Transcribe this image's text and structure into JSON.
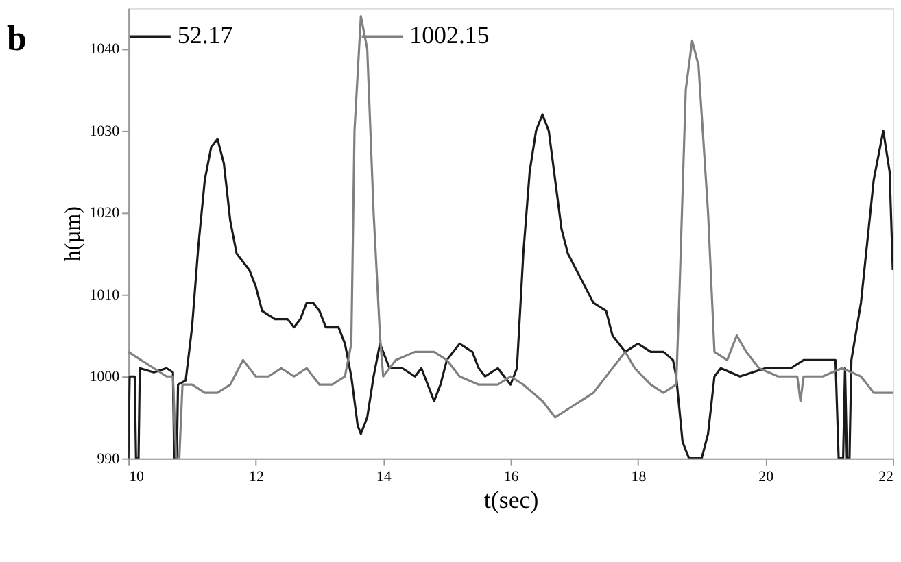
{
  "chart_data": {
    "type": "line",
    "title": "b",
    "xlabel": "t(sec)",
    "ylabel": "h(µm)",
    "xlim": [
      10,
      22
    ],
    "xticks": [
      10,
      12,
      14,
      16,
      18,
      20,
      22
    ],
    "ylim": [
      990,
      1045
    ],
    "yticks": [
      990,
      1000,
      1010,
      1020,
      1030,
      1040
    ],
    "grid": false,
    "legend": "top",
    "marker": "none",
    "line_style": "solid",
    "series": [
      {
        "name": "52.17",
        "color": "#1a1a1a",
        "x": [
          10.0,
          10.02,
          10.1,
          10.12,
          10.16,
          10.18,
          10.4,
          10.6,
          10.7,
          10.72,
          10.76,
          10.78,
          10.9,
          11.0,
          11.1,
          11.2,
          11.3,
          11.4,
          11.5,
          11.6,
          11.7,
          11.9,
          12.0,
          12.1,
          12.3,
          12.5,
          12.6,
          12.7,
          12.8,
          12.9,
          13.0,
          13.1,
          13.3,
          13.4,
          13.5,
          13.6,
          13.65,
          13.75,
          13.85,
          13.95,
          14.0,
          14.1,
          14.3,
          14.5,
          14.6,
          14.8,
          14.9,
          15.0,
          15.2,
          15.4,
          15.5,
          15.6,
          15.8,
          16.0,
          16.1,
          16.2,
          16.3,
          16.4,
          16.5,
          16.6,
          16.7,
          16.8,
          16.9,
          17.1,
          17.3,
          17.5,
          17.6,
          17.8,
          18.0,
          18.2,
          18.4,
          18.55,
          18.6,
          18.7,
          18.8,
          19.0,
          19.1,
          19.2,
          19.3,
          19.6,
          20.0,
          20.4,
          20.6,
          20.8,
          21.1,
          21.15,
          21.22,
          21.25,
          21.28,
          21.32,
          21.35,
          21.5,
          21.7,
          21.85,
          21.95,
          22.0
        ],
        "values": [
          990,
          1000,
          1000,
          990,
          990,
          1001,
          1000.5,
          1001,
          1000.5,
          990,
          990,
          999,
          999.5,
          1006,
          1016,
          1024,
          1028,
          1029,
          1026,
          1019,
          1015,
          1013,
          1011,
          1008,
          1007,
          1007,
          1006,
          1007,
          1009,
          1009,
          1008,
          1006,
          1006,
          1004,
          1000,
          994,
          993,
          995,
          1000,
          1004,
          1003,
          1001,
          1001,
          1000,
          1001,
          997,
          999,
          1002,
          1004,
          1003,
          1001,
          1000,
          1001,
          999,
          1001,
          1015,
          1025,
          1030,
          1032,
          1030,
          1024,
          1018,
          1015,
          1012,
          1009,
          1008,
          1005,
          1003,
          1004,
          1003,
          1003,
          1002,
          1000,
          992,
          990,
          990,
          993,
          1000,
          1001,
          1000,
          1001,
          1001,
          1002,
          1002,
          1002,
          990,
          990,
          1001,
          990,
          990,
          1002,
          1009,
          1024,
          1030,
          1025,
          1013
        ]
      },
      {
        "name": "1002.15",
        "color": "#808080",
        "x": [
          10.0,
          10.2,
          10.4,
          10.6,
          10.7,
          10.75,
          10.8,
          10.85,
          11.0,
          11.2,
          11.4,
          11.6,
          11.8,
          12.0,
          12.2,
          12.4,
          12.6,
          12.8,
          13.0,
          13.2,
          13.4,
          13.5,
          13.55,
          13.65,
          13.75,
          13.85,
          13.95,
          14.0,
          14.2,
          14.5,
          14.8,
          15.0,
          15.2,
          15.5,
          15.8,
          16.0,
          16.2,
          16.5,
          16.7,
          16.9,
          17.1,
          17.3,
          17.6,
          17.8,
          17.95,
          18.2,
          18.4,
          18.6,
          18.65,
          18.75,
          18.85,
          18.95,
          19.1,
          19.2,
          19.4,
          19.55,
          19.7,
          19.9,
          20.2,
          20.5,
          20.55,
          20.6,
          20.9,
          21.2,
          21.5,
          21.7,
          22.0
        ],
        "values": [
          1003,
          1002,
          1001,
          1000,
          1000,
          990,
          990,
          999,
          999,
          998,
          998,
          999,
          1002,
          1000,
          1000,
          1001,
          1000,
          1001,
          999,
          999,
          1000,
          1004,
          1030,
          1044,
          1040,
          1020,
          1005,
          1000,
          1002,
          1003,
          1003,
          1002,
          1000,
          999,
          999,
          1000,
          999,
          997,
          995,
          996,
          997,
          998,
          1001,
          1003,
          1001,
          999,
          998,
          999,
          1010,
          1035,
          1041,
          1038,
          1020,
          1003,
          1002,
          1005,
          1003,
          1001,
          1000,
          1000,
          997,
          1000,
          1000,
          1001,
          1000,
          998,
          998
        ]
      }
    ]
  }
}
